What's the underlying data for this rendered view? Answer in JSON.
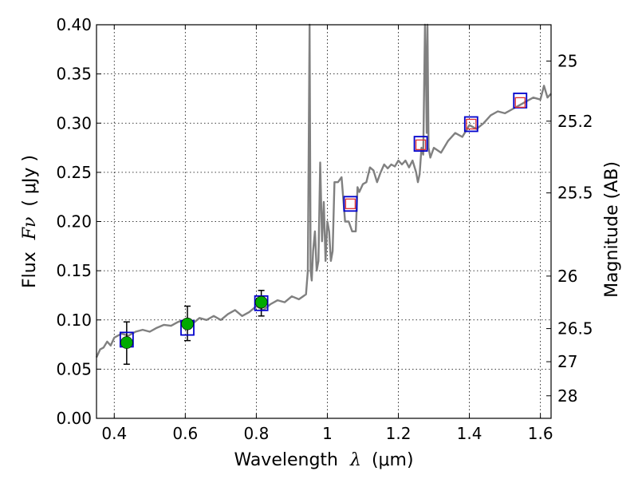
{
  "chart_data": {
    "type": "line",
    "xlabel_text": "Wavelength",
    "xlabel_symbol": "λ",
    "xlabel_unit": "(μm)",
    "ylabel_text": "Flux",
    "ylabel_symbol": "Fν",
    "ylabel_unit": "( μJy )",
    "y2label": "Magnitude (AB)",
    "xlim": [
      0.35,
      1.63
    ],
    "ylim": [
      0.0,
      0.4
    ],
    "grid": true,
    "x_ticks": [
      0.4,
      0.6,
      0.8,
      1.0,
      1.2,
      1.4,
      1.6
    ],
    "x_tick_labels": [
      "0.4",
      "0.6",
      "0.8",
      "1",
      "1.2",
      "1.4",
      "1.6"
    ],
    "y_ticks": [
      0.0,
      0.05,
      0.1,
      0.15,
      0.2,
      0.25,
      0.3,
      0.35,
      0.4
    ],
    "y_tick_labels": [
      "0.00",
      "0.05",
      "0.10",
      "0.15",
      "0.20",
      "0.25",
      "0.30",
      "0.35",
      "0.40"
    ],
    "mag_ticks": [
      25,
      25.2,
      25.5,
      26,
      26.5,
      27,
      28
    ],
    "mag_tick_labels": [
      "25",
      "25.2",
      "25.5",
      "26",
      "26.5",
      "27",
      "28"
    ],
    "spectrum": {
      "color": "#808080",
      "x": [
        0.35,
        0.36,
        0.37,
        0.38,
        0.39,
        0.4,
        0.42,
        0.44,
        0.46,
        0.48,
        0.5,
        0.52,
        0.54,
        0.56,
        0.58,
        0.6,
        0.62,
        0.64,
        0.66,
        0.68,
        0.7,
        0.72,
        0.74,
        0.76,
        0.78,
        0.8,
        0.82,
        0.84,
        0.86,
        0.88,
        0.9,
        0.92,
        0.94,
        0.945,
        0.95,
        0.953,
        0.956,
        0.96,
        0.965,
        0.97,
        0.975,
        0.98,
        0.985,
        0.99,
        0.995,
        1.0,
        1.005,
        1.01,
        1.015,
        1.02,
        1.03,
        1.04,
        1.05,
        1.06,
        1.07,
        1.08,
        1.085,
        1.09,
        1.1,
        1.11,
        1.12,
        1.13,
        1.14,
        1.15,
        1.16,
        1.17,
        1.18,
        1.19,
        1.2,
        1.21,
        1.22,
        1.23,
        1.24,
        1.25,
        1.255,
        1.26,
        1.265,
        1.27,
        1.275,
        1.278,
        1.28,
        1.282,
        1.285,
        1.29,
        1.3,
        1.32,
        1.34,
        1.36,
        1.38,
        1.4,
        1.42,
        1.44,
        1.46,
        1.48,
        1.5,
        1.52,
        1.54,
        1.56,
        1.58,
        1.6,
        1.61,
        1.62,
        1.63
      ],
      "y": [
        0.062,
        0.07,
        0.072,
        0.078,
        0.074,
        0.082,
        0.086,
        0.084,
        0.088,
        0.09,
        0.088,
        0.092,
        0.095,
        0.094,
        0.098,
        0.1,
        0.096,
        0.102,
        0.1,
        0.104,
        0.1,
        0.106,
        0.11,
        0.104,
        0.108,
        0.114,
        0.11,
        0.116,
        0.12,
        0.118,
        0.124,
        0.121,
        0.126,
        0.15,
        0.41,
        0.15,
        0.14,
        0.17,
        0.19,
        0.15,
        0.16,
        0.26,
        0.18,
        0.22,
        0.16,
        0.2,
        0.19,
        0.16,
        0.17,
        0.24,
        0.24,
        0.245,
        0.2,
        0.2,
        0.19,
        0.19,
        0.235,
        0.23,
        0.238,
        0.24,
        0.255,
        0.252,
        0.24,
        0.25,
        0.258,
        0.254,
        0.258,
        0.256,
        0.262,
        0.258,
        0.262,
        0.255,
        0.262,
        0.25,
        0.24,
        0.248,
        0.275,
        0.268,
        0.41,
        0.34,
        0.29,
        0.41,
        0.275,
        0.265,
        0.275,
        0.27,
        0.282,
        0.29,
        0.286,
        0.298,
        0.294,
        0.3,
        0.308,
        0.312,
        0.31,
        0.314,
        0.318,
        0.322,
        0.326,
        0.324,
        0.338,
        0.326,
        0.33
      ]
    },
    "model_photometry": {
      "color": "#0000cc",
      "x": [
        0.435,
        0.606,
        0.814,
        1.065,
        1.263,
        1.405,
        1.543
      ],
      "y": [
        0.08,
        0.092,
        0.117,
        0.218,
        0.279,
        0.299,
        0.323
      ]
    },
    "observed_photometry": {
      "color": "#00aa00",
      "x": [
        0.435,
        0.606,
        0.814
      ],
      "y": [
        0.077,
        0.096,
        0.118
      ],
      "yerr_low": [
        0.022,
        0.017,
        0.014
      ],
      "yerr_high": [
        0.021,
        0.018,
        0.012
      ]
    },
    "upper_points": {
      "color": "#e03030",
      "x": [
        1.065,
        1.263,
        1.405,
        1.543
      ],
      "y": [
        0.218,
        0.278,
        0.299,
        0.321
      ]
    }
  }
}
